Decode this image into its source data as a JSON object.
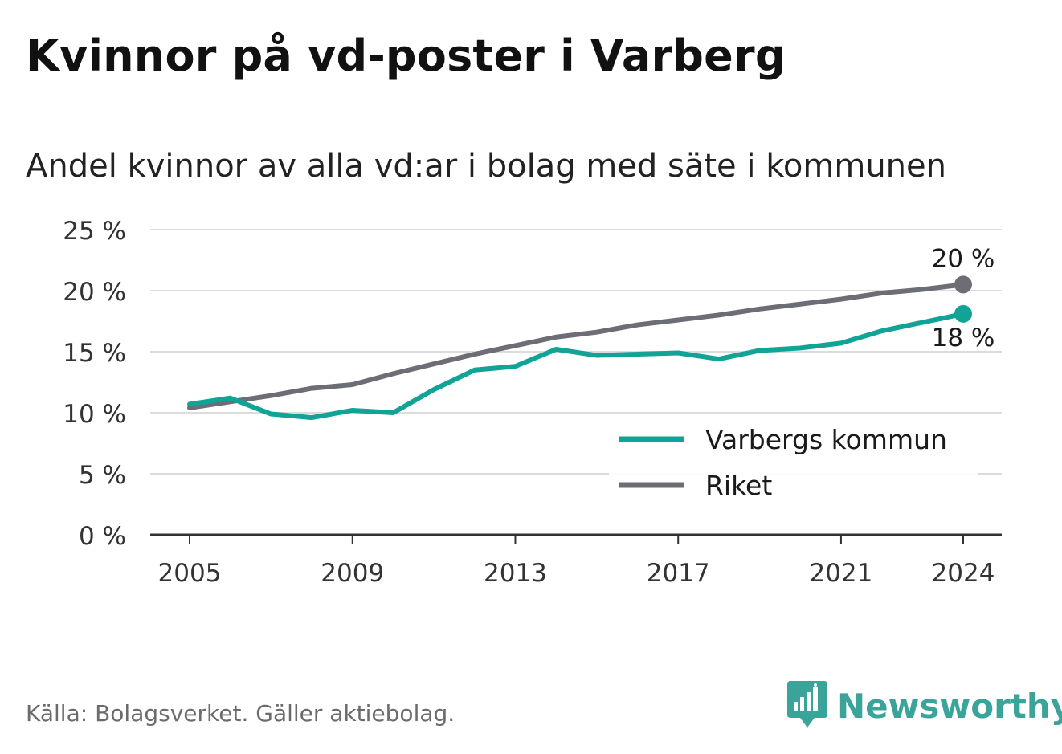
{
  "title": "Kvinnor på vd-poster i Varberg",
  "subtitle": "Andel kvinnor av alla vd:ar i bolag med säte i kommunen",
  "source": "Källa: Bolagsverket. Gäller aktiebolag.",
  "brand": "Newsworthy",
  "chart_data": {
    "type": "line",
    "x": [
      2005,
      2006,
      2007,
      2008,
      2009,
      2010,
      2011,
      2012,
      2013,
      2014,
      2015,
      2016,
      2017,
      2018,
      2019,
      2020,
      2021,
      2022,
      2023,
      2024
    ],
    "x_ticks": [
      2005,
      2009,
      2013,
      2017,
      2021,
      2024
    ],
    "x_tick_labels": [
      "2005",
      "2009",
      "2013",
      "2017",
      "2021",
      "2024"
    ],
    "y_ticks": [
      0,
      5,
      10,
      15,
      20,
      25
    ],
    "y_tick_labels": [
      "0 %",
      "5 %",
      "10 %",
      "15 %",
      "20 %",
      "25 %"
    ],
    "ylim": [
      0,
      25
    ],
    "xlim": [
      2004,
      2025
    ],
    "grid": true,
    "legend_position": "bottom-right",
    "series": [
      {
        "name": "Varbergs kommun",
        "color": "#11a396",
        "values": [
          10.7,
          11.2,
          9.9,
          9.6,
          10.2,
          10.0,
          11.9,
          13.5,
          13.8,
          15.2,
          14.7,
          14.8,
          14.9,
          14.4,
          15.1,
          15.3,
          15.7,
          16.7,
          17.4,
          18.1
        ],
        "end_label": "18 %"
      },
      {
        "name": "Riket",
        "color": "#6d6d75",
        "values": [
          10.4,
          10.9,
          11.4,
          12.0,
          12.3,
          13.2,
          14.0,
          14.8,
          15.5,
          16.2,
          16.6,
          17.2,
          17.6,
          18.0,
          18.5,
          18.9,
          19.3,
          19.8,
          20.1,
          20.5
        ],
        "end_label": "20 %"
      }
    ]
  }
}
